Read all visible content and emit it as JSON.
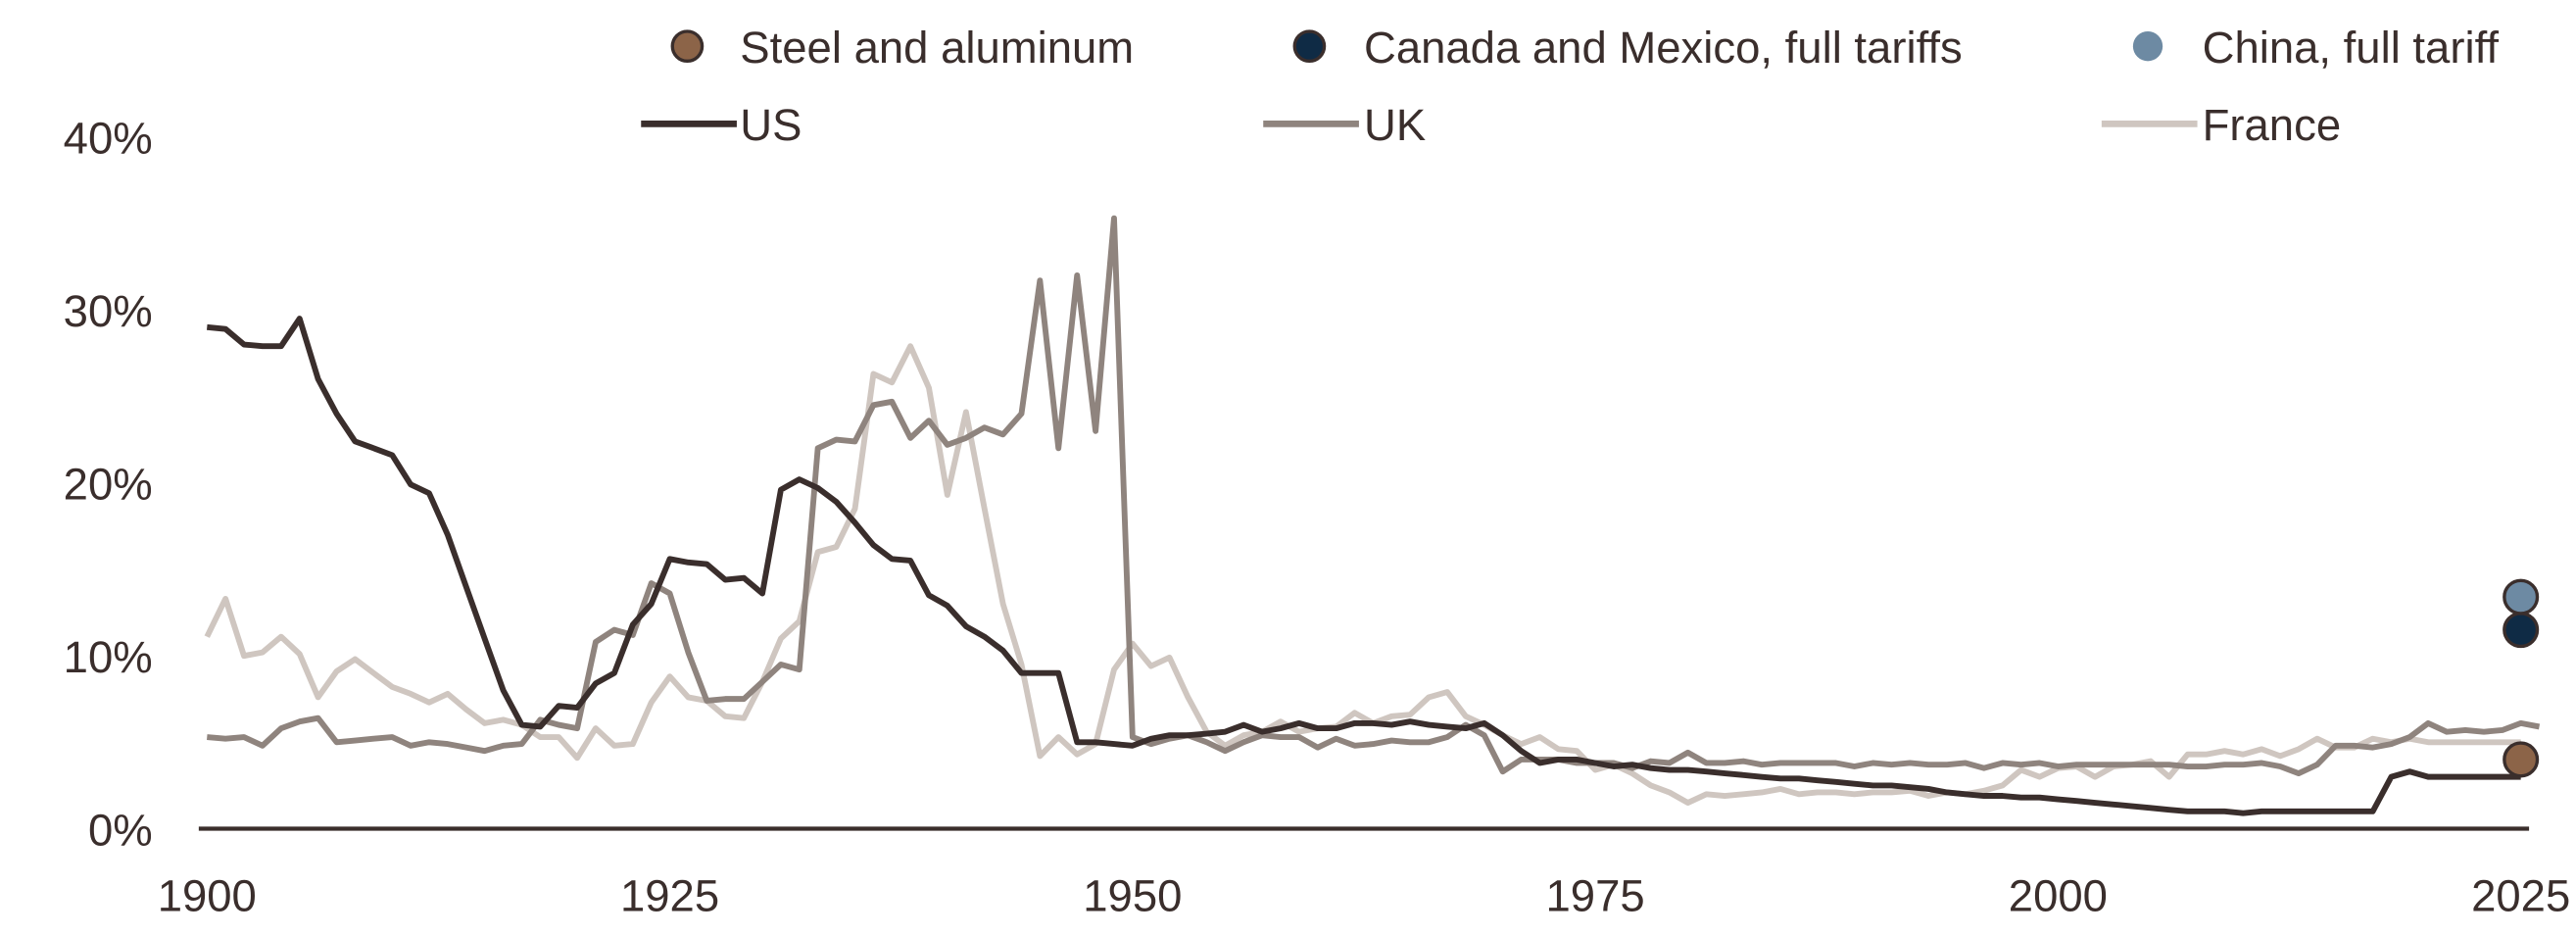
{
  "chart_data": {
    "type": "line",
    "title": "",
    "xlabel": "",
    "ylabel": "",
    "xlim": [
      1900,
      2025
    ],
    "ylim": [
      0,
      40
    ],
    "x_ticks": [
      1900,
      1925,
      1950,
      1975,
      2000,
      2025
    ],
    "x_tick_labels": [
      "1900",
      "1925",
      "1950",
      "1975",
      "2000",
      "2025"
    ],
    "y_ticks": [
      0,
      10,
      20,
      30,
      40
    ],
    "y_tick_labels": [
      "0%",
      "10%",
      "20%",
      "30%",
      "40%"
    ],
    "grid": false,
    "legend_placement": "top",
    "x_start": 1900,
    "series": [
      {
        "name": "US",
        "color": "#3a2e2c",
        "values": [
          29.0,
          28.9,
          28.0,
          27.9,
          27.9,
          29.5,
          26.0,
          24.0,
          22.4,
          22.0,
          21.6,
          19.9,
          19.4,
          17.0,
          14.0,
          11.0,
          8.0,
          6.0,
          5.9,
          7.1,
          7.0,
          8.4,
          9.0,
          11.8,
          13.0,
          15.6,
          15.4,
          15.3,
          14.4,
          14.5,
          13.6,
          19.6,
          20.2,
          19.7,
          18.9,
          17.7,
          16.4,
          15.6,
          15.5,
          13.5,
          12.9,
          11.7,
          11.1,
          10.3,
          9.0,
          9.0,
          9.0,
          5.0,
          5.0,
          4.9,
          4.8,
          5.2,
          5.4,
          5.4,
          5.5,
          5.6,
          6.0,
          5.6,
          5.8,
          6.1,
          5.8,
          5.8,
          6.1,
          6.1,
          6.0,
          6.2,
          6.0,
          5.9,
          5.8,
          6.1,
          5.4,
          4.5,
          3.8,
          4.0,
          4.0,
          3.8,
          3.6,
          3.7,
          3.5,
          3.4,
          3.4,
          3.3,
          3.2,
          3.1,
          3.0,
          2.9,
          2.9,
          2.8,
          2.7,
          2.6,
          2.5,
          2.5,
          2.4,
          2.3,
          2.1,
          2.0,
          1.9,
          1.9,
          1.8,
          1.8,
          1.7,
          1.6,
          1.5,
          1.4,
          1.3,
          1.2,
          1.1,
          1.0,
          1.0,
          1.0,
          0.9,
          1.0,
          1.0,
          1.0,
          1.0,
          1.0,
          1.0,
          1.0,
          3.0,
          3.3,
          3.0,
          3.0,
          3.0,
          3.0,
          3.0,
          3.0
        ]
      },
      {
        "name": "UK",
        "color": "#8f847e",
        "values": [
          5.3,
          5.2,
          5.3,
          4.8,
          5.8,
          6.2,
          6.4,
          5.0,
          5.1,
          5.2,
          5.3,
          4.8,
          5.0,
          4.9,
          4.7,
          4.5,
          4.8,
          4.9,
          6.3,
          6.0,
          5.8,
          10.8,
          11.5,
          11.2,
          14.2,
          13.6,
          10.2,
          7.4,
          7.5,
          7.5,
          8.5,
          9.5,
          9.2,
          22.0,
          22.5,
          22.4,
          24.5,
          24.7,
          22.6,
          23.6,
          22.2,
          22.6,
          23.2,
          22.8,
          24.0,
          31.7,
          22.0,
          32.0,
          23.0,
          35.3,
          5.3,
          4.9,
          5.2,
          5.4,
          5.0,
          4.5,
          5.0,
          5.4,
          5.3,
          5.3,
          4.7,
          5.2,
          4.8,
          4.9,
          5.1,
          5.0,
          5.0,
          5.3,
          6.0,
          5.4,
          3.3,
          4.0,
          4.0,
          4.0,
          3.8,
          3.8,
          3.8,
          3.5,
          3.9,
          3.8,
          4.4,
          3.8,
          3.8,
          3.9,
          3.7,
          3.8,
          3.8,
          3.8,
          3.8,
          3.6,
          3.8,
          3.7,
          3.8,
          3.7,
          3.7,
          3.8,
          3.5,
          3.8,
          3.7,
          3.8,
          3.6,
          3.7,
          3.7,
          3.7,
          3.7,
          3.7,
          3.7,
          3.6,
          3.6,
          3.7,
          3.7,
          3.8,
          3.6,
          3.2,
          3.7,
          4.8,
          4.8,
          4.7,
          4.9,
          5.3,
          6.1,
          5.6,
          5.7,
          5.6,
          5.7,
          6.1,
          5.9
        ]
      },
      {
        "name": "France",
        "color": "#cfc6c0",
        "values": [
          11.1,
          13.3,
          10.0,
          10.2,
          11.1,
          10.1,
          7.6,
          9.1,
          9.8,
          9.0,
          8.2,
          7.8,
          7.3,
          7.8,
          6.9,
          6.1,
          6.3,
          6.0,
          5.3,
          5.3,
          4.1,
          5.8,
          4.8,
          4.9,
          7.3,
          8.8,
          7.6,
          7.4,
          6.5,
          6.4,
          8.5,
          11.0,
          12.0,
          16.0,
          16.3,
          18.5,
          26.3,
          25.8,
          27.9,
          25.5,
          19.3,
          24.1,
          18.5,
          13.0,
          9.5,
          4.2,
          5.3,
          4.3,
          4.9,
          9.2,
          10.7,
          9.4,
          9.9,
          7.6,
          5.6,
          4.8,
          5.4,
          5.6,
          6.2,
          5.6,
          5.8,
          5.9,
          6.7,
          6.1,
          6.5,
          6.6,
          7.6,
          7.9,
          6.5,
          6.0,
          5.4,
          4.9,
          5.3,
          4.6,
          4.5,
          3.4,
          3.7,
          3.2,
          2.5,
          2.1,
          1.5,
          2.0,
          1.9,
          2.0,
          2.1,
          2.3,
          2.0,
          2.1,
          2.1,
          2.0,
          2.1,
          2.1,
          2.2,
          1.9,
          2.1,
          2.0,
          2.2,
          2.5,
          3.4,
          3.0,
          3.5,
          3.6,
          3.0,
          3.6,
          3.7,
          3.9,
          3.0,
          4.3,
          4.3,
          4.5,
          4.3,
          4.6,
          4.2,
          4.6,
          5.2,
          4.7,
          4.7,
          5.2,
          5.0,
          5.2,
          5.0,
          5.0,
          5.0,
          5.0,
          5.0,
          5.0
        ]
      }
    ],
    "points": [
      {
        "name": "Steel and aluminum",
        "color": "#8c6448",
        "x": 2025,
        "y": 4.0
      },
      {
        "name": "Canada and Mexico, full tariffs",
        "color": "#0f2b45",
        "x": 2025,
        "y": 11.5
      },
      {
        "name": "China, full tariff",
        "color": "#6d8aa3",
        "x": 2025,
        "y": 13.4
      }
    ]
  }
}
